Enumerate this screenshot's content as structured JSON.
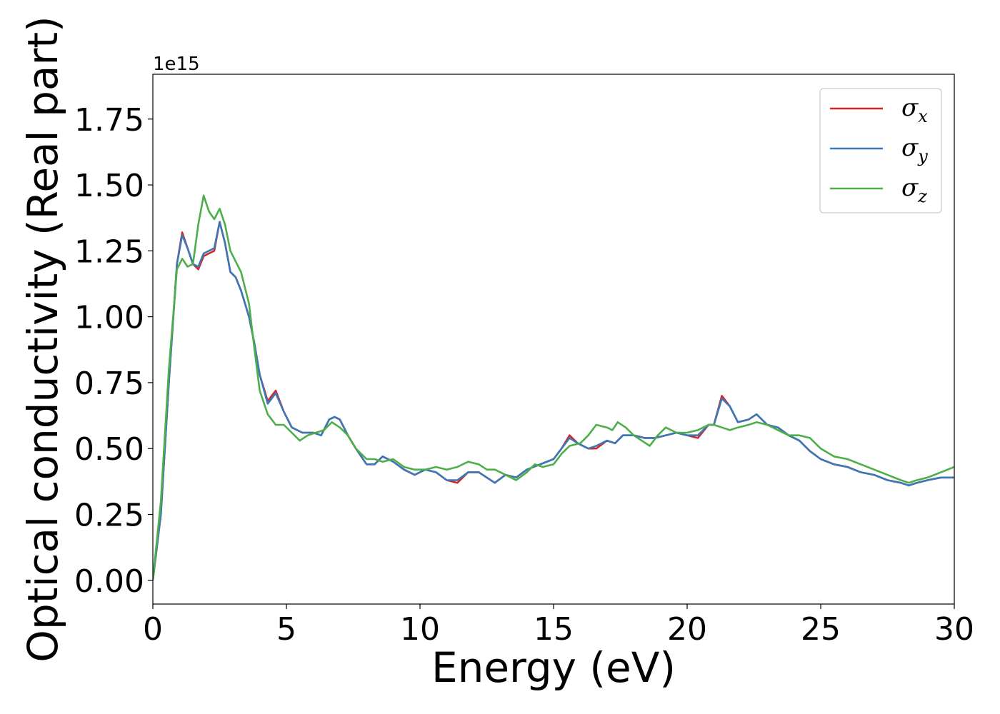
{
  "chart_data": {
    "type": "line",
    "xlabel": "Energy (eV)",
    "ylabel": "Optical conductivity (Real part)",
    "y_offset_label": "1e15",
    "xlim": [
      0,
      30
    ],
    "ylim": [
      -0.09,
      1.92
    ],
    "x_ticks": [
      0,
      5,
      10,
      15,
      20,
      25,
      30
    ],
    "x_tick_labels": [
      "0",
      "5",
      "10",
      "15",
      "20",
      "25",
      "30"
    ],
    "y_ticks": [
      0.0,
      0.25,
      0.5,
      0.75,
      1.0,
      1.25,
      1.5,
      1.75
    ],
    "y_tick_labels": [
      "0.00",
      "0.25",
      "0.50",
      "0.75",
      "1.00",
      "1.25",
      "1.50",
      "1.75"
    ],
    "grid": false,
    "legend_position": "top-right",
    "series": [
      {
        "name": "σx",
        "symbol": "σ",
        "sub": "x",
        "color": "#d62728",
        "points": [
          [
            0,
            0
          ],
          [
            0.3,
            0.25
          ],
          [
            0.6,
            0.75
          ],
          [
            0.9,
            1.2
          ],
          [
            1.1,
            1.32
          ],
          [
            1.3,
            1.26
          ],
          [
            1.5,
            1.2
          ],
          [
            1.7,
            1.18
          ],
          [
            1.9,
            1.23
          ],
          [
            2.1,
            1.24
          ],
          [
            2.3,
            1.25
          ],
          [
            2.5,
            1.36
          ],
          [
            2.7,
            1.28
          ],
          [
            2.9,
            1.17
          ],
          [
            3.1,
            1.15
          ],
          [
            3.3,
            1.1
          ],
          [
            3.6,
            1.0
          ],
          [
            3.8,
            0.9
          ],
          [
            4.0,
            0.78
          ],
          [
            4.3,
            0.68
          ],
          [
            4.6,
            0.72
          ],
          [
            4.9,
            0.64
          ],
          [
            5.2,
            0.58
          ],
          [
            5.6,
            0.56
          ],
          [
            6.0,
            0.56
          ],
          [
            6.3,
            0.55
          ],
          [
            6.6,
            0.61
          ],
          [
            6.8,
            0.62
          ],
          [
            7.0,
            0.61
          ],
          [
            7.3,
            0.55
          ],
          [
            7.6,
            0.5
          ],
          [
            8.0,
            0.44
          ],
          [
            8.3,
            0.44
          ],
          [
            8.6,
            0.47
          ],
          [
            9.0,
            0.45
          ],
          [
            9.4,
            0.42
          ],
          [
            9.8,
            0.4
          ],
          [
            10.2,
            0.42
          ],
          [
            10.6,
            0.41
          ],
          [
            11.0,
            0.38
          ],
          [
            11.4,
            0.37
          ],
          [
            11.8,
            0.41
          ],
          [
            12.2,
            0.41
          ],
          [
            12.5,
            0.39
          ],
          [
            12.8,
            0.37
          ],
          [
            13.2,
            0.4
          ],
          [
            13.6,
            0.39
          ],
          [
            14.0,
            0.42
          ],
          [
            14.5,
            0.44
          ],
          [
            15.0,
            0.46
          ],
          [
            15.3,
            0.5
          ],
          [
            15.6,
            0.55
          ],
          [
            15.9,
            0.52
          ],
          [
            16.3,
            0.5
          ],
          [
            16.6,
            0.5
          ],
          [
            17.0,
            0.53
          ],
          [
            17.3,
            0.52
          ],
          [
            17.6,
            0.55
          ],
          [
            18.0,
            0.55
          ],
          [
            18.4,
            0.54
          ],
          [
            18.8,
            0.54
          ],
          [
            19.2,
            0.55
          ],
          [
            19.6,
            0.56
          ],
          [
            20.0,
            0.55
          ],
          [
            20.4,
            0.54
          ],
          [
            20.8,
            0.59
          ],
          [
            21.0,
            0.59
          ],
          [
            21.3,
            0.7
          ],
          [
            21.6,
            0.66
          ],
          [
            21.9,
            0.6
          ],
          [
            22.3,
            0.61
          ],
          [
            22.6,
            0.63
          ],
          [
            23.0,
            0.59
          ],
          [
            23.4,
            0.58
          ],
          [
            23.8,
            0.55
          ],
          [
            24.2,
            0.53
          ],
          [
            24.6,
            0.49
          ],
          [
            25.0,
            0.46
          ],
          [
            25.5,
            0.44
          ],
          [
            26.0,
            0.43
          ],
          [
            26.5,
            0.41
          ],
          [
            27.0,
            0.4
          ],
          [
            27.5,
            0.38
          ],
          [
            28.0,
            0.37
          ],
          [
            28.3,
            0.36
          ],
          [
            28.6,
            0.37
          ],
          [
            29.0,
            0.38
          ],
          [
            29.5,
            0.39
          ],
          [
            30.0,
            0.39
          ]
        ]
      },
      {
        "name": "σy",
        "symbol": "σ",
        "sub": "y",
        "color": "#3a78b8",
        "points": [
          [
            0,
            0
          ],
          [
            0.3,
            0.25
          ],
          [
            0.6,
            0.75
          ],
          [
            0.9,
            1.2
          ],
          [
            1.1,
            1.31
          ],
          [
            1.3,
            1.26
          ],
          [
            1.5,
            1.2
          ],
          [
            1.7,
            1.19
          ],
          [
            1.9,
            1.24
          ],
          [
            2.1,
            1.25
          ],
          [
            2.3,
            1.26
          ],
          [
            2.5,
            1.36
          ],
          [
            2.7,
            1.28
          ],
          [
            2.9,
            1.17
          ],
          [
            3.1,
            1.15
          ],
          [
            3.3,
            1.1
          ],
          [
            3.6,
            1.0
          ],
          [
            3.8,
            0.9
          ],
          [
            4.0,
            0.78
          ],
          [
            4.3,
            0.67
          ],
          [
            4.6,
            0.71
          ],
          [
            4.9,
            0.64
          ],
          [
            5.2,
            0.58
          ],
          [
            5.6,
            0.56
          ],
          [
            6.0,
            0.56
          ],
          [
            6.3,
            0.55
          ],
          [
            6.6,
            0.61
          ],
          [
            6.8,
            0.62
          ],
          [
            7.0,
            0.61
          ],
          [
            7.3,
            0.55
          ],
          [
            7.6,
            0.5
          ],
          [
            8.0,
            0.44
          ],
          [
            8.3,
            0.44
          ],
          [
            8.6,
            0.47
          ],
          [
            9.0,
            0.45
          ],
          [
            9.4,
            0.42
          ],
          [
            9.8,
            0.4
          ],
          [
            10.2,
            0.42
          ],
          [
            10.6,
            0.41
          ],
          [
            11.0,
            0.38
          ],
          [
            11.4,
            0.38
          ],
          [
            11.8,
            0.41
          ],
          [
            12.2,
            0.41
          ],
          [
            12.5,
            0.39
          ],
          [
            12.8,
            0.37
          ],
          [
            13.2,
            0.4
          ],
          [
            13.6,
            0.39
          ],
          [
            14.0,
            0.42
          ],
          [
            14.5,
            0.44
          ],
          [
            15.0,
            0.46
          ],
          [
            15.3,
            0.5
          ],
          [
            15.6,
            0.54
          ],
          [
            15.9,
            0.52
          ],
          [
            16.3,
            0.5
          ],
          [
            16.6,
            0.51
          ],
          [
            17.0,
            0.53
          ],
          [
            17.3,
            0.52
          ],
          [
            17.6,
            0.55
          ],
          [
            18.0,
            0.55
          ],
          [
            18.4,
            0.54
          ],
          [
            18.8,
            0.54
          ],
          [
            19.2,
            0.55
          ],
          [
            19.6,
            0.56
          ],
          [
            20.0,
            0.55
          ],
          [
            20.4,
            0.55
          ],
          [
            20.8,
            0.59
          ],
          [
            21.0,
            0.59
          ],
          [
            21.3,
            0.69
          ],
          [
            21.6,
            0.66
          ],
          [
            21.9,
            0.6
          ],
          [
            22.3,
            0.61
          ],
          [
            22.6,
            0.63
          ],
          [
            23.0,
            0.59
          ],
          [
            23.4,
            0.58
          ],
          [
            23.8,
            0.55
          ],
          [
            24.2,
            0.53
          ],
          [
            24.6,
            0.49
          ],
          [
            25.0,
            0.46
          ],
          [
            25.5,
            0.44
          ],
          [
            26.0,
            0.43
          ],
          [
            26.5,
            0.41
          ],
          [
            27.0,
            0.4
          ],
          [
            27.5,
            0.38
          ],
          [
            28.0,
            0.37
          ],
          [
            28.3,
            0.36
          ],
          [
            28.6,
            0.37
          ],
          [
            29.0,
            0.38
          ],
          [
            29.5,
            0.39
          ],
          [
            30.0,
            0.39
          ]
        ]
      },
      {
        "name": "σz",
        "symbol": "σ",
        "sub": "z",
        "color": "#4daf4a",
        "points": [
          [
            0,
            0
          ],
          [
            0.3,
            0.3
          ],
          [
            0.6,
            0.8
          ],
          [
            0.9,
            1.18
          ],
          [
            1.1,
            1.22
          ],
          [
            1.3,
            1.19
          ],
          [
            1.5,
            1.2
          ],
          [
            1.7,
            1.35
          ],
          [
            1.9,
            1.46
          ],
          [
            2.1,
            1.4
          ],
          [
            2.3,
            1.37
          ],
          [
            2.5,
            1.41
          ],
          [
            2.7,
            1.35
          ],
          [
            2.9,
            1.25
          ],
          [
            3.1,
            1.21
          ],
          [
            3.3,
            1.17
          ],
          [
            3.6,
            1.05
          ],
          [
            3.8,
            0.88
          ],
          [
            4.0,
            0.72
          ],
          [
            4.3,
            0.63
          ],
          [
            4.6,
            0.59
          ],
          [
            4.9,
            0.59
          ],
          [
            5.2,
            0.56
          ],
          [
            5.5,
            0.53
          ],
          [
            5.8,
            0.55
          ],
          [
            6.1,
            0.56
          ],
          [
            6.4,
            0.57
          ],
          [
            6.7,
            0.6
          ],
          [
            7.0,
            0.58
          ],
          [
            7.3,
            0.55
          ],
          [
            7.6,
            0.5
          ],
          [
            8.0,
            0.46
          ],
          [
            8.3,
            0.46
          ],
          [
            8.6,
            0.45
          ],
          [
            9.0,
            0.46
          ],
          [
            9.4,
            0.43
          ],
          [
            9.8,
            0.42
          ],
          [
            10.2,
            0.42
          ],
          [
            10.6,
            0.43
          ],
          [
            11.0,
            0.42
          ],
          [
            11.4,
            0.43
          ],
          [
            11.8,
            0.45
          ],
          [
            12.2,
            0.44
          ],
          [
            12.5,
            0.42
          ],
          [
            12.8,
            0.42
          ],
          [
            13.2,
            0.4
          ],
          [
            13.6,
            0.38
          ],
          [
            14.0,
            0.41
          ],
          [
            14.3,
            0.44
          ],
          [
            14.6,
            0.43
          ],
          [
            15.0,
            0.44
          ],
          [
            15.3,
            0.48
          ],
          [
            15.6,
            0.51
          ],
          [
            16.0,
            0.52
          ],
          [
            16.3,
            0.55
          ],
          [
            16.6,
            0.59
          ],
          [
            17.0,
            0.58
          ],
          [
            17.2,
            0.57
          ],
          [
            17.4,
            0.6
          ],
          [
            17.7,
            0.58
          ],
          [
            18.0,
            0.55
          ],
          [
            18.3,
            0.53
          ],
          [
            18.6,
            0.51
          ],
          [
            18.9,
            0.55
          ],
          [
            19.2,
            0.58
          ],
          [
            19.6,
            0.56
          ],
          [
            20.0,
            0.56
          ],
          [
            20.4,
            0.57
          ],
          [
            20.8,
            0.59
          ],
          [
            21.0,
            0.59
          ],
          [
            21.3,
            0.58
          ],
          [
            21.6,
            0.57
          ],
          [
            21.9,
            0.58
          ],
          [
            22.3,
            0.59
          ],
          [
            22.6,
            0.6
          ],
          [
            23.0,
            0.59
          ],
          [
            23.4,
            0.57
          ],
          [
            23.8,
            0.55
          ],
          [
            24.2,
            0.55
          ],
          [
            24.6,
            0.54
          ],
          [
            25.0,
            0.5
          ],
          [
            25.5,
            0.47
          ],
          [
            26.0,
            0.46
          ],
          [
            26.5,
            0.44
          ],
          [
            27.0,
            0.42
          ],
          [
            27.5,
            0.4
          ],
          [
            28.0,
            0.38
          ],
          [
            28.3,
            0.37
          ],
          [
            28.6,
            0.38
          ],
          [
            29.0,
            0.39
          ],
          [
            29.5,
            0.41
          ],
          [
            30.0,
            0.43
          ]
        ]
      }
    ]
  }
}
